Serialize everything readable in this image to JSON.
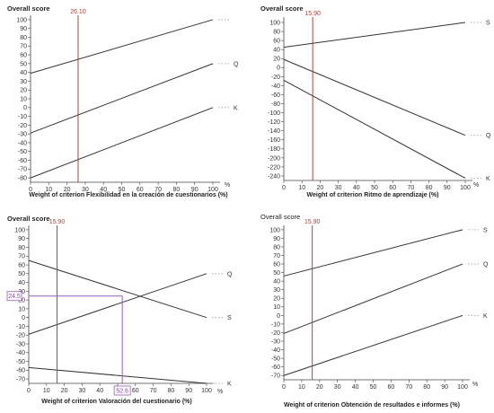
{
  "colors": {
    "series": "#333333",
    "marker": "#b5442e",
    "readout": "#9b59b6",
    "axis": "#444444",
    "leader": "#999999"
  },
  "chart_data": [
    {
      "type": "line",
      "title": "Overall score",
      "title_weight": "bold",
      "xlabel": "Weight of criterion Flexibilidad en la creación de cuestionarios (%)",
      "x_unit": "%",
      "xlim": [
        0,
        100
      ],
      "ylim": [
        -85,
        103
      ],
      "x_ticks": [
        0,
        10,
        20,
        30,
        40,
        50,
        60,
        70,
        80,
        90,
        100
      ],
      "y_ticks": [
        100,
        90,
        80,
        70,
        60,
        50,
        40,
        30,
        20,
        10,
        0,
        -10,
        -20,
        -30,
        -40,
        -50,
        -60,
        -70,
        -80
      ],
      "marker": {
        "x": 26.1,
        "label": "26.10"
      },
      "series": [
        {
          "name": "",
          "x": [
            0,
            100
          ],
          "y": [
            39,
            100
          ]
        },
        {
          "name": "Q",
          "x": [
            0,
            100
          ],
          "y": [
            -29,
            50
          ]
        },
        {
          "name": "K",
          "x": [
            0,
            100
          ],
          "y": [
            -80,
            0
          ]
        }
      ]
    },
    {
      "type": "line",
      "title": "Overall score",
      "title_weight": "bold",
      "xlabel": "Weight of criterion Ritmo de aprendizaje (%)",
      "x_unit": "%",
      "xlim": [
        0,
        100
      ],
      "ylim": [
        -250,
        108
      ],
      "x_ticks": [
        0,
        10,
        20,
        30,
        40,
        50,
        60,
        70,
        80,
        90,
        100
      ],
      "y_ticks": [
        100,
        80,
        60,
        40,
        20,
        0,
        -20,
        -40,
        -60,
        -80,
        -100,
        -120,
        -140,
        -160,
        -180,
        -200,
        -220,
        -240
      ],
      "marker": {
        "x": 15.9,
        "label": "15.90"
      },
      "series": [
        {
          "name": "S",
          "x": [
            0,
            100
          ],
          "y": [
            45,
            100
          ]
        },
        {
          "name": "Q",
          "x": [
            0,
            100
          ],
          "y": [
            18,
            -150
          ]
        },
        {
          "name": "K",
          "x": [
            0,
            100
          ],
          "y": [
            -28,
            -245
          ]
        }
      ]
    },
    {
      "type": "line",
      "title": "Overall score",
      "title_weight": "bold",
      "xlabel": "Weight of criterion Valoración del cuestionario (%)",
      "x_unit": "%",
      "xlim": [
        0,
        100
      ],
      "ylim": [
        -75,
        103
      ],
      "x_ticks": [
        0,
        10,
        20,
        30,
        40,
        50,
        60,
        70,
        80,
        90,
        100
      ],
      "y_ticks": [
        100,
        90,
        80,
        70,
        60,
        50,
        40,
        30,
        20,
        10,
        0,
        -10,
        -20,
        -30,
        -40,
        -50,
        -60,
        -70
      ],
      "marker": {
        "x": 15.9,
        "label": "15.90"
      },
      "readout": {
        "x": 52.6,
        "y": 24.5,
        "x_label": "52.6",
        "y_label": "24.5"
      },
      "series": [
        {
          "name": "Q",
          "x": [
            0,
            100
          ],
          "y": [
            -19,
            50
          ]
        },
        {
          "name": "S",
          "x": [
            0,
            100
          ],
          "y": [
            65,
            0
          ]
        },
        {
          "name": "K",
          "x": [
            0,
            100
          ],
          "y": [
            -57,
            -75
          ]
        }
      ]
    },
    {
      "type": "line",
      "title": "Overall score",
      "title_weight": "normal",
      "xlabel": "Weight of criterion Obtención de resultados e informes (%)",
      "x_unit": "%",
      "xlim": [
        0,
        100
      ],
      "ylim": [
        -75,
        103
      ],
      "x_ticks": [
        0,
        10,
        20,
        30,
        40,
        50,
        60,
        70,
        80,
        90,
        100
      ],
      "y_ticks": [
        100,
        90,
        80,
        70,
        60,
        50,
        40,
        30,
        20,
        10,
        0,
        -10,
        -20,
        -30,
        -40,
        -50,
        -60,
        -70
      ],
      "marker": {
        "x": 15.9,
        "label": "15.90"
      },
      "series": [
        {
          "name": "S",
          "x": [
            0,
            100
          ],
          "y": [
            46,
            100
          ]
        },
        {
          "name": "Q",
          "x": [
            0,
            100
          ],
          "y": [
            -21,
            60
          ]
        },
        {
          "name": "K",
          "x": [
            0,
            100
          ],
          "y": [
            -70,
            0
          ]
        }
      ]
    }
  ]
}
